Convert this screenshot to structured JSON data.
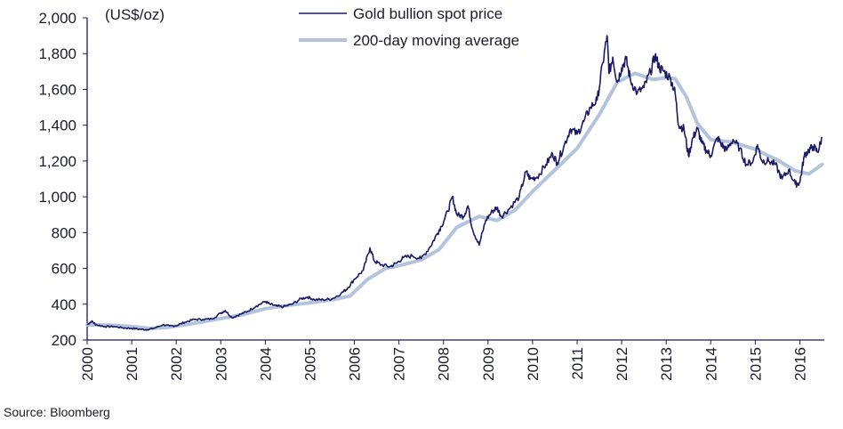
{
  "chart_data": {
    "type": "line",
    "unit_label": "(US$/oz)",
    "xlabel": "",
    "ylabel": "",
    "x_tick_labels": [
      "2000",
      "2001",
      "2002",
      "2003",
      "2004",
      "2005",
      "2006",
      "2007",
      "2008",
      "2009",
      "2010",
      "2011",
      "2012",
      "2013",
      "2014",
      "2015",
      "2016"
    ],
    "y_tick_labels": [
      "200",
      "400",
      "600",
      "800",
      "1,000",
      "1,200",
      "1,400",
      "1,600",
      "1,800",
      "2,000"
    ],
    "xlim": [
      2000,
      2016.55
    ],
    "ylim": [
      200,
      2000
    ],
    "grid": false,
    "legend_position": "top-center",
    "series": [
      {
        "name": "Gold bullion spot price",
        "color": "#1a1a66",
        "points": [
          [
            2000.0,
            285
          ],
          [
            2000.1,
            305
          ],
          [
            2000.2,
            285
          ],
          [
            2000.4,
            275
          ],
          [
            2000.6,
            275
          ],
          [
            2000.8,
            268
          ],
          [
            2001.0,
            265
          ],
          [
            2001.2,
            260
          ],
          [
            2001.35,
            258
          ],
          [
            2001.5,
            265
          ],
          [
            2001.7,
            285
          ],
          [
            2001.85,
            278
          ],
          [
            2002.0,
            280
          ],
          [
            2002.2,
            300
          ],
          [
            2002.4,
            315
          ],
          [
            2002.6,
            315
          ],
          [
            2002.8,
            318
          ],
          [
            2003.0,
            350
          ],
          [
            2003.1,
            365
          ],
          [
            2003.25,
            325
          ],
          [
            2003.45,
            345
          ],
          [
            2003.6,
            360
          ],
          [
            2003.8,
            390
          ],
          [
            2004.0,
            415
          ],
          [
            2004.1,
            400
          ],
          [
            2004.25,
            390
          ],
          [
            2004.4,
            385
          ],
          [
            2004.6,
            400
          ],
          [
            2004.8,
            430
          ],
          [
            2004.95,
            440
          ],
          [
            2005.1,
            425
          ],
          [
            2005.3,
            425
          ],
          [
            2005.5,
            430
          ],
          [
            2005.7,
            460
          ],
          [
            2005.85,
            490
          ],
          [
            2006.0,
            540
          ],
          [
            2006.2,
            590
          ],
          [
            2006.35,
            715
          ],
          [
            2006.45,
            640
          ],
          [
            2006.6,
            620
          ],
          [
            2006.8,
            610
          ],
          [
            2006.95,
            630
          ],
          [
            2007.1,
            660
          ],
          [
            2007.3,
            670
          ],
          [
            2007.5,
            655
          ],
          [
            2007.7,
            720
          ],
          [
            2007.85,
            790
          ],
          [
            2007.95,
            835
          ],
          [
            2008.1,
            920
          ],
          [
            2008.2,
            1000
          ],
          [
            2008.3,
            900
          ],
          [
            2008.45,
            890
          ],
          [
            2008.55,
            950
          ],
          [
            2008.65,
            820
          ],
          [
            2008.8,
            730
          ],
          [
            2008.95,
            870
          ],
          [
            2009.1,
            920
          ],
          [
            2009.2,
            940
          ],
          [
            2009.3,
            890
          ],
          [
            2009.5,
            940
          ],
          [
            2009.7,
            1000
          ],
          [
            2009.85,
            1140
          ],
          [
            2009.95,
            1100
          ],
          [
            2010.1,
            1110
          ],
          [
            2010.3,
            1180
          ],
          [
            2010.45,
            1240
          ],
          [
            2010.55,
            1190
          ],
          [
            2010.7,
            1280
          ],
          [
            2010.85,
            1380
          ],
          [
            2011.0,
            1350
          ],
          [
            2011.15,
            1420
          ],
          [
            2011.3,
            1500
          ],
          [
            2011.45,
            1540
          ],
          [
            2011.58,
            1750
          ],
          [
            2011.67,
            1900
          ],
          [
            2011.72,
            1690
          ],
          [
            2011.8,
            1780
          ],
          [
            2011.9,
            1640
          ],
          [
            2012.0,
            1720
          ],
          [
            2012.1,
            1770
          ],
          [
            2012.2,
            1650
          ],
          [
            2012.35,
            1580
          ],
          [
            2012.5,
            1610
          ],
          [
            2012.65,
            1700
          ],
          [
            2012.75,
            1790
          ],
          [
            2012.85,
            1720
          ],
          [
            2012.95,
            1700
          ],
          [
            2013.1,
            1660
          ],
          [
            2013.2,
            1580
          ],
          [
            2013.28,
            1400
          ],
          [
            2013.4,
            1380
          ],
          [
            2013.5,
            1230
          ],
          [
            2013.6,
            1330
          ],
          [
            2013.7,
            1380
          ],
          [
            2013.8,
            1300
          ],
          [
            2013.9,
            1260
          ],
          [
            2014.0,
            1230
          ],
          [
            2014.15,
            1330
          ],
          [
            2014.25,
            1290
          ],
          [
            2014.35,
            1260
          ],
          [
            2014.5,
            1320
          ],
          [
            2014.65,
            1270
          ],
          [
            2014.8,
            1180
          ],
          [
            2014.95,
            1200
          ],
          [
            2015.05,
            1290
          ],
          [
            2015.15,
            1200
          ],
          [
            2015.3,
            1200
          ],
          [
            2015.45,
            1180
          ],
          [
            2015.6,
            1100
          ],
          [
            2015.75,
            1150
          ],
          [
            2015.9,
            1070
          ],
          [
            2016.0,
            1080
          ],
          [
            2016.1,
            1230
          ],
          [
            2016.2,
            1260
          ],
          [
            2016.3,
            1280
          ],
          [
            2016.4,
            1250
          ],
          [
            2016.5,
            1330
          ]
        ]
      },
      {
        "name": "200-day moving average",
        "color": "#b4c3dc",
        "points": [
          [
            2000.0,
            285
          ],
          [
            2000.5,
            283
          ],
          [
            2001.0,
            275
          ],
          [
            2001.4,
            265
          ],
          [
            2001.8,
            270
          ],
          [
            2002.2,
            285
          ],
          [
            2002.6,
            302
          ],
          [
            2003.0,
            320
          ],
          [
            2003.5,
            342
          ],
          [
            2004.0,
            375
          ],
          [
            2004.5,
            393
          ],
          [
            2005.0,
            408
          ],
          [
            2005.5,
            425
          ],
          [
            2005.9,
            445
          ],
          [
            2006.3,
            540
          ],
          [
            2006.7,
            600
          ],
          [
            2007.0,
            615
          ],
          [
            2007.5,
            648
          ],
          [
            2007.9,
            705
          ],
          [
            2008.3,
            830
          ],
          [
            2008.8,
            890
          ],
          [
            2009.2,
            868
          ],
          [
            2009.6,
            925
          ],
          [
            2010.0,
            1030
          ],
          [
            2010.5,
            1150
          ],
          [
            2011.0,
            1270
          ],
          [
            2011.5,
            1460
          ],
          [
            2011.9,
            1640
          ],
          [
            2012.3,
            1690
          ],
          [
            2012.7,
            1655
          ],
          [
            2013.0,
            1665
          ],
          [
            2013.2,
            1660
          ],
          [
            2013.45,
            1560
          ],
          [
            2013.7,
            1410
          ],
          [
            2014.0,
            1320
          ],
          [
            2014.5,
            1305
          ],
          [
            2015.0,
            1265
          ],
          [
            2015.5,
            1205
          ],
          [
            2015.9,
            1145
          ],
          [
            2016.2,
            1128
          ],
          [
            2016.5,
            1180
          ]
        ]
      }
    ],
    "source": "Source: Bloomberg"
  }
}
